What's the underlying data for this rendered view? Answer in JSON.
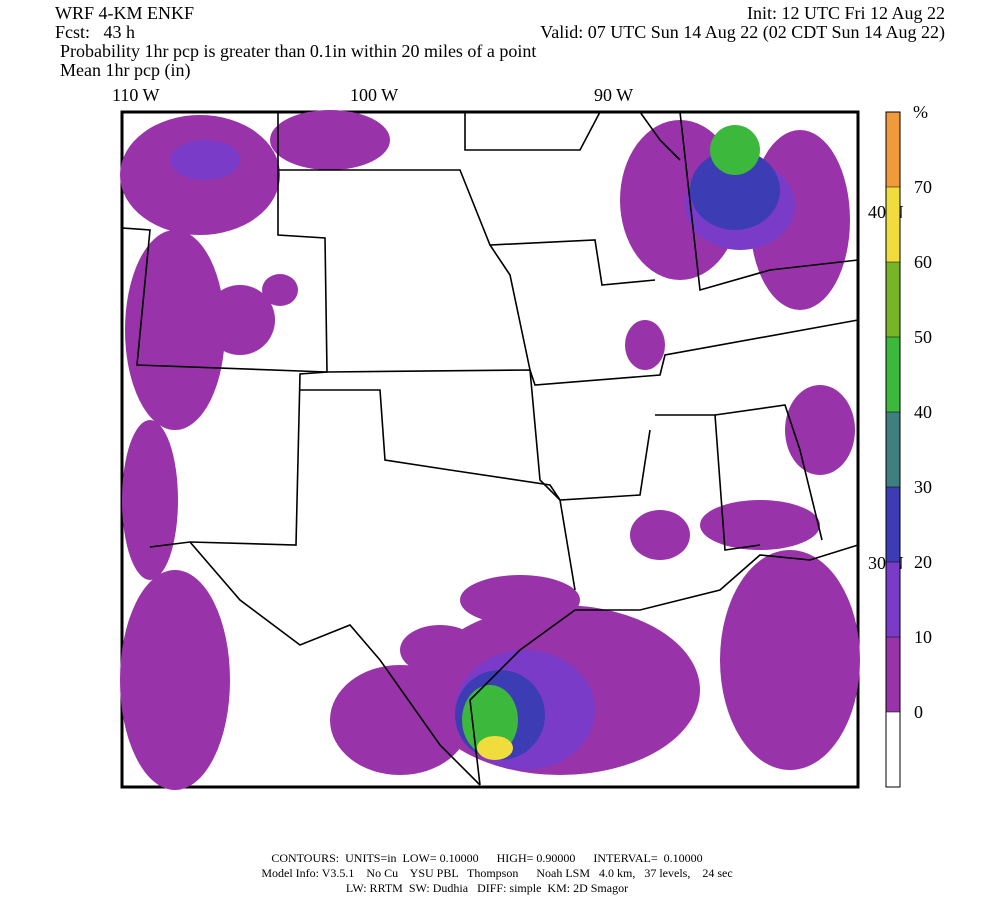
{
  "header": {
    "model": "WRF 4-KM ENKF",
    "init": "Init: 12 UTC Fri 12 Aug 22",
    "forecast": "Fcst:   43 h",
    "valid": "Valid: 07 UTC Sun 14 Aug 22 (02 CDT Sun 14 Aug 22)",
    "field1": "Probability 1hr pcp is greater than 0.1in within 20 miles of a point",
    "field2": "Mean 1hr pcp (in)"
  },
  "map": {
    "lon_labels": [
      "110 W",
      "100 W",
      "90 W"
    ],
    "lat_labels": [
      "40 N",
      "30 N"
    ]
  },
  "colorbar": {
    "unit": "%",
    "ticks": [
      0,
      10,
      20,
      30,
      40,
      50,
      60,
      70
    ],
    "colors": [
      "#ffffff",
      "#9933aa",
      "#7a3cc8",
      "#3c3cb4",
      "#3e7f80",
      "#3cb83c",
      "#78b428",
      "#f0dc3c",
      "#f09a3c"
    ]
  },
  "footer": {
    "contours": "CONTOURS:  UNITS=in  LOW= 0.10000      HIGH= 0.90000      INTERVAL=  0.10000",
    "model_info": "Model Info: V3.5.1    No Cu    YSU PBL   Thompson      Noah LSM   4.0 km,   37 levels,    24 sec",
    "physics": "LW: RRTM  SW: Dudhia   DIFF: simple  KM: 2D Smagor"
  }
}
